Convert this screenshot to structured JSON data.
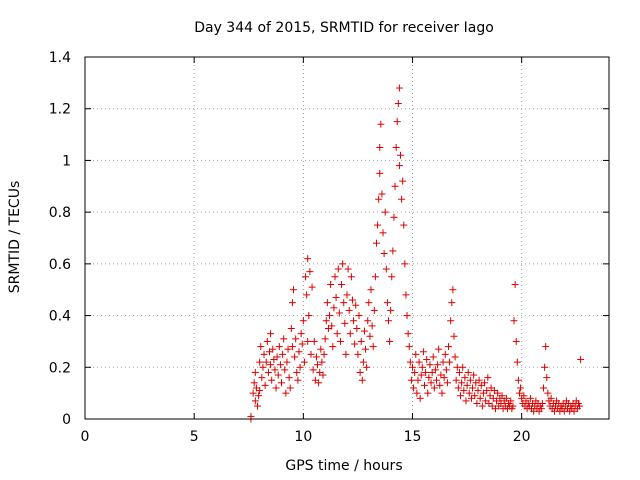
{
  "chart_data": {
    "type": "scatter",
    "title": "Day 344 of 2015, SRMTID for receiver Iago",
    "xlabel": "GPS time / hours",
    "ylabel": "SRMTID / TECUs",
    "xlim": [
      0,
      24
    ],
    "ylim": [
      0,
      1.4
    ],
    "xticks": [
      0,
      5,
      10,
      15,
      20
    ],
    "xtick_labels": [
      "0",
      "5",
      "10",
      "15",
      "20"
    ],
    "yticks": [
      0,
      0.2,
      0.4,
      0.6,
      0.8,
      1.0,
      1.2,
      1.4
    ],
    "ytick_labels": [
      "0",
      "0.2",
      "0.4",
      "0.6",
      "0.8",
      "1",
      "1.2",
      "1.4"
    ],
    "grid": true,
    "marker": "plus",
    "colors": {
      "series": "#dd0000",
      "grid": "#a0a0a0",
      "axes": "#000000"
    },
    "series": [
      {
        "name": "SRMTID",
        "points": [
          [
            7.6,
            0.0
          ],
          [
            7.6,
            0.01
          ],
          [
            7.7,
            0.1
          ],
          [
            7.75,
            0.14
          ],
          [
            7.8,
            0.18
          ],
          [
            7.8,
            0.07
          ],
          [
            7.85,
            0.12
          ],
          [
            7.9,
            0.05
          ],
          [
            7.95,
            0.09
          ],
          [
            8.0,
            0.22
          ],
          [
            8.0,
            0.11
          ],
          [
            8.05,
            0.28
          ],
          [
            8.1,
            0.16
          ],
          [
            8.15,
            0.2
          ],
          [
            8.2,
            0.25
          ],
          [
            8.25,
            0.13
          ],
          [
            8.3,
            0.22
          ],
          [
            8.35,
            0.3
          ],
          [
            8.4,
            0.18
          ],
          [
            8.45,
            0.26
          ],
          [
            8.5,
            0.33
          ],
          [
            8.5,
            0.21
          ],
          [
            8.55,
            0.15
          ],
          [
            8.6,
            0.27
          ],
          [
            8.65,
            0.23
          ],
          [
            8.7,
            0.19
          ],
          [
            8.75,
            0.12
          ],
          [
            8.8,
            0.24
          ],
          [
            8.85,
            0.17
          ],
          [
            8.9,
            0.28
          ],
          [
            8.95,
            0.21
          ],
          [
            9.0,
            0.14
          ],
          [
            9.05,
            0.25
          ],
          [
            9.1,
            0.31
          ],
          [
            9.15,
            0.19
          ],
          [
            9.2,
            0.1
          ],
          [
            9.25,
            0.22
          ],
          [
            9.3,
            0.27
          ],
          [
            9.35,
            0.16
          ],
          [
            9.4,
            0.12
          ],
          [
            9.45,
            0.35
          ],
          [
            9.5,
            0.45
          ],
          [
            9.5,
            0.28
          ],
          [
            9.55,
            0.5
          ],
          [
            9.6,
            0.24
          ],
          [
            9.65,
            0.31
          ],
          [
            9.7,
            0.18
          ],
          [
            9.75,
            0.15
          ],
          [
            9.8,
            0.26
          ],
          [
            9.85,
            0.2
          ],
          [
            9.9,
            0.33
          ],
          [
            9.95,
            0.29
          ],
          [
            10.0,
            0.38
          ],
          [
            10.05,
            0.22
          ],
          [
            10.1,
            0.55
          ],
          [
            10.15,
            0.48
          ],
          [
            10.2,
            0.62
          ],
          [
            10.2,
            0.3
          ],
          [
            10.25,
            0.4
          ],
          [
            10.3,
            0.57
          ],
          [
            10.35,
            0.25
          ],
          [
            10.4,
            0.51
          ],
          [
            10.45,
            0.19
          ],
          [
            10.5,
            0.3
          ],
          [
            10.55,
            0.15
          ],
          [
            10.6,
            0.24
          ],
          [
            10.65,
            0.21
          ],
          [
            10.7,
            0.14
          ],
          [
            10.75,
            0.18
          ],
          [
            10.8,
            0.27
          ],
          [
            10.85,
            0.22
          ],
          [
            10.9,
            0.17
          ],
          [
            10.95,
            0.25
          ],
          [
            11.0,
            0.31
          ],
          [
            11.05,
            0.38
          ],
          [
            11.1,
            0.45
          ],
          [
            11.15,
            0.35
          ],
          [
            11.2,
            0.4
          ],
          [
            11.25,
            0.52
          ],
          [
            11.3,
            0.36
          ],
          [
            11.35,
            0.28
          ],
          [
            11.4,
            0.43
          ],
          [
            11.45,
            0.55
          ],
          [
            11.5,
            0.47
          ],
          [
            11.55,
            0.33
          ],
          [
            11.6,
            0.58
          ],
          [
            11.65,
            0.41
          ],
          [
            11.7,
            0.3
          ],
          [
            11.75,
            0.52
          ],
          [
            11.8,
            0.6
          ],
          [
            11.85,
            0.45
          ],
          [
            11.9,
            0.37
          ],
          [
            11.95,
            0.25
          ],
          [
            12.0,
            0.48
          ],
          [
            12.05,
            0.58
          ],
          [
            12.1,
            0.42
          ],
          [
            12.15,
            0.33
          ],
          [
            12.2,
            0.55
          ],
          [
            12.25,
            0.46
          ],
          [
            12.3,
            0.38
          ],
          [
            12.35,
            0.29
          ],
          [
            12.4,
            0.44
          ],
          [
            12.45,
            0.35
          ],
          [
            12.5,
            0.25
          ],
          [
            12.55,
            0.4
          ],
          [
            12.6,
            0.18
          ],
          [
            12.65,
            0.3
          ],
          [
            12.7,
            0.15
          ],
          [
            12.75,
            0.22
          ],
          [
            12.8,
            0.34
          ],
          [
            12.85,
            0.27
          ],
          [
            12.9,
            0.2
          ],
          [
            12.95,
            0.38
          ],
          [
            13.0,
            0.45
          ],
          [
            13.05,
            0.32
          ],
          [
            13.1,
            0.5
          ],
          [
            13.15,
            0.36
          ],
          [
            13.2,
            0.28
          ],
          [
            13.25,
            0.42
          ],
          [
            13.3,
            0.55
          ],
          [
            13.35,
            0.68
          ],
          [
            13.4,
            0.75
          ],
          [
            13.45,
            0.85
          ],
          [
            13.5,
            0.95
          ],
          [
            13.5,
            1.05
          ],
          [
            13.55,
            1.14
          ],
          [
            13.6,
            0.87
          ],
          [
            13.65,
            0.72
          ],
          [
            13.7,
            0.64
          ],
          [
            13.75,
            0.8
          ],
          [
            13.8,
            0.58
          ],
          [
            13.85,
            0.45
          ],
          [
            13.9,
            0.38
          ],
          [
            13.95,
            0.3
          ],
          [
            14.0,
            0.42
          ],
          [
            14.05,
            0.55
          ],
          [
            14.1,
            0.65
          ],
          [
            14.15,
            0.78
          ],
          [
            14.2,
            0.9
          ],
          [
            14.25,
            1.05
          ],
          [
            14.3,
            1.15
          ],
          [
            14.35,
            1.22
          ],
          [
            14.4,
            1.28
          ],
          [
            14.4,
            0.98
          ],
          [
            14.45,
            1.02
          ],
          [
            14.5,
            0.85
          ],
          [
            14.55,
            0.92
          ],
          [
            14.6,
            0.75
          ],
          [
            14.65,
            0.6
          ],
          [
            14.7,
            0.48
          ],
          [
            14.75,
            0.4
          ],
          [
            14.8,
            0.33
          ],
          [
            14.85,
            0.28
          ],
          [
            14.9,
            0.22
          ],
          [
            14.95,
            0.15
          ],
          [
            15.0,
            0.2
          ],
          [
            15.05,
            0.12
          ],
          [
            15.1,
            0.18
          ],
          [
            15.15,
            0.25
          ],
          [
            15.2,
            0.1
          ],
          [
            15.25,
            0.15
          ],
          [
            15.3,
            0.22
          ],
          [
            15.35,
            0.08
          ],
          [
            15.4,
            0.17
          ],
          [
            15.45,
            0.2
          ],
          [
            15.5,
            0.26
          ],
          [
            15.55,
            0.13
          ],
          [
            15.6,
            0.18
          ],
          [
            15.65,
            0.23
          ],
          [
            15.7,
            0.1
          ],
          [
            15.75,
            0.16
          ],
          [
            15.8,
            0.21
          ],
          [
            15.85,
            0.14
          ],
          [
            15.9,
            0.18
          ],
          [
            15.95,
            0.24
          ],
          [
            16.0,
            0.12
          ],
          [
            16.05,
            0.19
          ],
          [
            16.1,
            0.15
          ],
          [
            16.15,
            0.21
          ],
          [
            16.2,
            0.27
          ],
          [
            16.25,
            0.13
          ],
          [
            16.3,
            0.17
          ],
          [
            16.35,
            0.1
          ],
          [
            16.4,
            0.22
          ],
          [
            16.45,
            0.16
          ],
          [
            16.5,
            0.25
          ],
          [
            16.55,
            0.19
          ],
          [
            16.6,
            0.14
          ],
          [
            16.65,
            0.28
          ],
          [
            16.7,
            0.22
          ],
          [
            16.75,
            0.38
          ],
          [
            16.8,
            0.45
          ],
          [
            16.85,
            0.5
          ],
          [
            16.9,
            0.32
          ],
          [
            16.95,
            0.24
          ],
          [
            17.0,
            0.15
          ],
          [
            17.05,
            0.2
          ],
          [
            17.1,
            0.12
          ],
          [
            17.15,
            0.18
          ],
          [
            17.2,
            0.09
          ],
          [
            17.25,
            0.14
          ],
          [
            17.3,
            0.2
          ],
          [
            17.35,
            0.11
          ],
          [
            17.4,
            0.16
          ],
          [
            17.45,
            0.07
          ],
          [
            17.5,
            0.13
          ],
          [
            17.55,
            0.18
          ],
          [
            17.6,
            0.1
          ],
          [
            17.65,
            0.15
          ],
          [
            17.7,
            0.08
          ],
          [
            17.75,
            0.12
          ],
          [
            17.8,
            0.17
          ],
          [
            17.85,
            0.09
          ],
          [
            17.9,
            0.14
          ],
          [
            17.95,
            0.06
          ],
          [
            18.0,
            0.11
          ],
          [
            18.05,
            0.15
          ],
          [
            18.1,
            0.08
          ],
          [
            18.15,
            0.13
          ],
          [
            18.2,
            0.05
          ],
          [
            18.25,
            0.1
          ],
          [
            18.3,
            0.14
          ],
          [
            18.35,
            0.07
          ],
          [
            18.4,
            0.11
          ],
          [
            18.45,
            0.16
          ],
          [
            18.5,
            0.06
          ],
          [
            18.55,
            0.09
          ],
          [
            18.6,
            0.12
          ],
          [
            18.65,
            0.05
          ],
          [
            18.7,
            0.08
          ],
          [
            18.75,
            0.11
          ],
          [
            18.8,
            0.04
          ],
          [
            18.85,
            0.07
          ],
          [
            18.9,
            0.1
          ],
          [
            18.95,
            0.05
          ],
          [
            19.0,
            0.08
          ],
          [
            19.05,
            0.06
          ],
          [
            19.1,
            0.09
          ],
          [
            19.15,
            0.04
          ],
          [
            19.2,
            0.07
          ],
          [
            19.25,
            0.05
          ],
          [
            19.3,
            0.08
          ],
          [
            19.35,
            0.04
          ],
          [
            19.4,
            0.06
          ],
          [
            19.45,
            0.05
          ],
          [
            19.5,
            0.07
          ],
          [
            19.55,
            0.04
          ],
          [
            19.6,
            0.05
          ],
          [
            19.65,
            0.38
          ],
          [
            19.7,
            0.52
          ],
          [
            19.75,
            0.3
          ],
          [
            19.8,
            0.22
          ],
          [
            19.85,
            0.15
          ],
          [
            19.9,
            0.1
          ],
          [
            19.95,
            0.12
          ],
          [
            20.0,
            0.08
          ],
          [
            20.05,
            0.06
          ],
          [
            20.1,
            0.09
          ],
          [
            20.15,
            0.05
          ],
          [
            20.2,
            0.07
          ],
          [
            20.25,
            0.04
          ],
          [
            20.3,
            0.06
          ],
          [
            20.35,
            0.05
          ],
          [
            20.4,
            0.08
          ],
          [
            20.45,
            0.04
          ],
          [
            20.5,
            0.06
          ],
          [
            20.55,
            0.03
          ],
          [
            20.6,
            0.05
          ],
          [
            20.65,
            0.07
          ],
          [
            20.7,
            0.04
          ],
          [
            20.75,
            0.06
          ],
          [
            20.8,
            0.03
          ],
          [
            20.85,
            0.05
          ],
          [
            20.9,
            0.04
          ],
          [
            20.95,
            0.06
          ],
          [
            21.0,
            0.12
          ],
          [
            21.05,
            0.2
          ],
          [
            21.1,
            0.28
          ],
          [
            21.15,
            0.16
          ],
          [
            21.2,
            0.1
          ],
          [
            21.25,
            0.07
          ],
          [
            21.3,
            0.05
          ],
          [
            21.35,
            0.08
          ],
          [
            21.4,
            0.04
          ],
          [
            21.45,
            0.06
          ],
          [
            21.5,
            0.03
          ],
          [
            21.55,
            0.05
          ],
          [
            21.6,
            0.07
          ],
          [
            21.65,
            0.04
          ],
          [
            21.7,
            0.06
          ],
          [
            21.75,
            0.03
          ],
          [
            21.8,
            0.05
          ],
          [
            21.85,
            0.04
          ],
          [
            21.9,
            0.06
          ],
          [
            21.95,
            0.03
          ],
          [
            22.0,
            0.05
          ],
          [
            22.05,
            0.07
          ],
          [
            22.1,
            0.04
          ],
          [
            22.15,
            0.06
          ],
          [
            22.2,
            0.03
          ],
          [
            22.25,
            0.05
          ],
          [
            22.3,
            0.04
          ],
          [
            22.35,
            0.06
          ],
          [
            22.4,
            0.03
          ],
          [
            22.45,
            0.05
          ],
          [
            22.5,
            0.07
          ],
          [
            22.55,
            0.04
          ],
          [
            22.6,
            0.06
          ],
          [
            22.65,
            0.05
          ],
          [
            22.7,
            0.23
          ]
        ]
      }
    ]
  }
}
